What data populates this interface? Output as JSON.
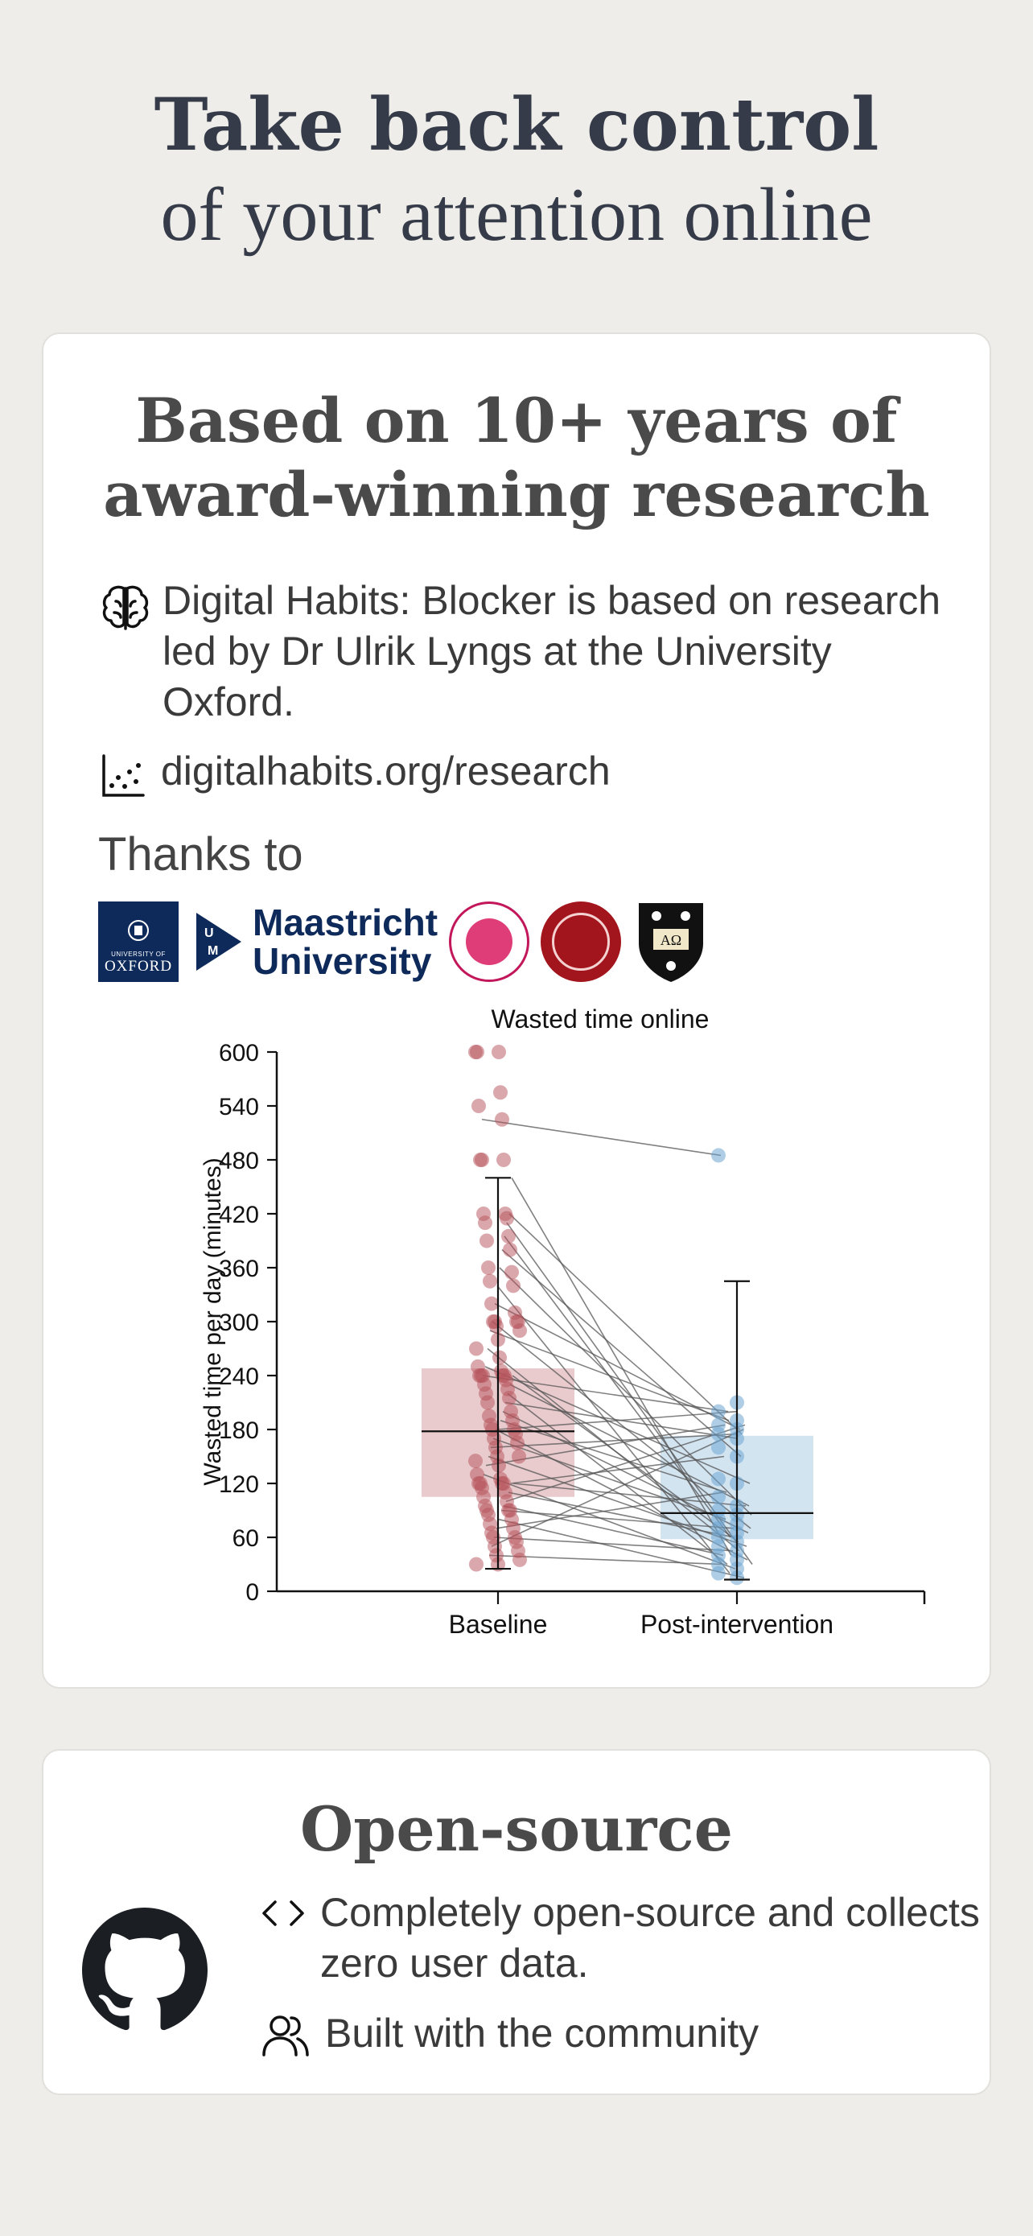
{
  "hero": {
    "line1": "Take back control",
    "line2": "of your attention online"
  },
  "research": {
    "title_line1": "Based on 10+ years of",
    "title_line2": "award-winning research",
    "brain_icon": "brain-icon",
    "description": "Digital Habits: Blocker is based on research led by Dr Ulrik Lyngs at the University Oxford.",
    "scatter_icon": "scatter-plot-icon",
    "link": "digitalhabits.org/research",
    "thanks": "Thanks to",
    "logos": {
      "oxford_small": "UNIVERSITY OF",
      "oxford_big": "OXFORD",
      "maastricht_line1": "Maastricht",
      "maastricht_line2": "University"
    }
  },
  "chart_data": {
    "type": "scatter",
    "title": "Wasted time online",
    "xlabel": "",
    "ylabel": "Wasted time per day (minutes)",
    "categories": [
      "Baseline",
      "Post-intervention"
    ],
    "ylim": [
      0,
      600
    ],
    "yticks": [
      0,
      60,
      120,
      180,
      240,
      300,
      360,
      420,
      480,
      540,
      600
    ],
    "colors": {
      "baseline": "#b5525a",
      "post": "#6ea6d2"
    },
    "bars": [
      {
        "category": "Baseline",
        "lower": 105,
        "upper": 248,
        "median": 178,
        "whisker_low": 25,
        "whisker_high": 460
      },
      {
        "category": "Post-intervention",
        "lower": 58,
        "upper": 173,
        "median": 87,
        "whisker_low": 13,
        "whisker_high": 345
      }
    ],
    "baseline_points": [
      600,
      600,
      600,
      555,
      540,
      525,
      480,
      480,
      480,
      420,
      420,
      415,
      410,
      395,
      390,
      380,
      360,
      355,
      345,
      340,
      320,
      310,
      300,
      300,
      300,
      300,
      295,
      290,
      280,
      270,
      260,
      250,
      245,
      240,
      240,
      240,
      240,
      240,
      235,
      230,
      225,
      220,
      215,
      210,
      200,
      195,
      190,
      185,
      180,
      180,
      175,
      170,
      165,
      160,
      150,
      150,
      145,
      140,
      130,
      125,
      120,
      120,
      120,
      120,
      115,
      110,
      105,
      100,
      95,
      90,
      90,
      90,
      85,
      80,
      75,
      70,
      65,
      60,
      60,
      55,
      50,
      45,
      40,
      35,
      30,
      30
    ],
    "post_points": [
      485,
      210,
      200,
      190,
      185,
      180,
      175,
      170,
      160,
      150,
      125,
      120,
      105,
      95,
      90,
      85,
      80,
      75,
      70,
      65,
      60,
      55,
      50,
      45,
      40,
      35,
      30,
      25,
      20,
      15
    ],
    "paired": [
      [
        525,
        485
      ],
      [
        460,
        40
      ],
      [
        420,
        175
      ],
      [
        410,
        30
      ],
      [
        395,
        60
      ],
      [
        380,
        150
      ],
      [
        360,
        85
      ],
      [
        340,
        20
      ],
      [
        320,
        180
      ],
      [
        300,
        70
      ],
      [
        290,
        190
      ],
      [
        270,
        45
      ],
      [
        250,
        120
      ],
      [
        240,
        200
      ],
      [
        240,
        55
      ],
      [
        230,
        95
      ],
      [
        220,
        30
      ],
      [
        210,
        170
      ],
      [
        200,
        65
      ],
      [
        190,
        110
      ],
      [
        180,
        200
      ],
      [
        180,
        35
      ],
      [
        170,
        80
      ],
      [
        160,
        175
      ],
      [
        150,
        50
      ],
      [
        140,
        185
      ],
      [
        130,
        25
      ],
      [
        120,
        95
      ],
      [
        120,
        150
      ],
      [
        110,
        60
      ],
      [
        100,
        185
      ],
      [
        95,
        40
      ],
      [
        90,
        70
      ],
      [
        80,
        15
      ],
      [
        70,
        110
      ],
      [
        60,
        45
      ],
      [
        50,
        180
      ],
      [
        40,
        30
      ]
    ]
  },
  "open": {
    "title": "Open-source",
    "github_icon": "github-icon",
    "code_icon": "code-icon",
    "line1": "Completely open-source and collects zero user data.",
    "people_icon": "users-icon",
    "line2": "Built with the community"
  }
}
